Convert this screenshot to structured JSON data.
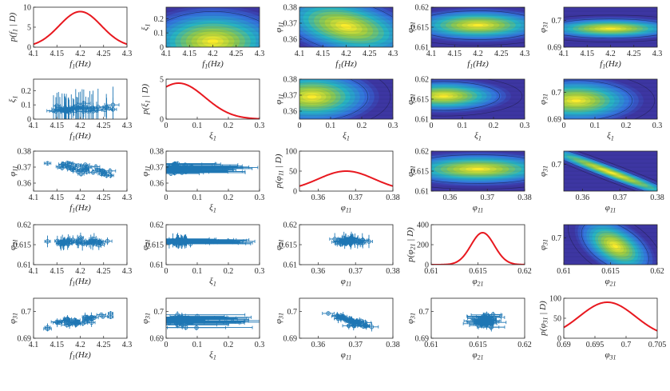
{
  "colors": {
    "curve": "#e8181f",
    "errorbar": "#1f77b4",
    "contour_low": "#3e2e9a",
    "contour_mid": "#2ab0c0",
    "contour_high": "#f8ea2c",
    "axis": "#262626"
  },
  "chart_data": [
    {
      "id": "pdf-f1",
      "type": "line",
      "panel": [
        0,
        0
      ],
      "xlabel": "f_1(Hz)",
      "ylabel": "p(f_1 | D)",
      "xlim": [
        4.1,
        4.3
      ],
      "ylim": [
        0,
        10
      ],
      "xticks": [
        "4.1",
        "4.15",
        "4.2",
        "4.25",
        "4.3"
      ],
      "yticks": [
        "0",
        "5",
        "10"
      ],
      "curve": {
        "kind": "gaussian",
        "mu": 4.2,
        "sigma": 0.045,
        "peak": 8.9
      }
    },
    {
      "id": "contour-xi1-f1",
      "type": "heatmap",
      "panel": [
        0,
        1
      ],
      "xlabel": "f_1(Hz)",
      "ylabel": "ξ_1",
      "xlim": [
        4.1,
        4.3
      ],
      "ylim": [
        0,
        0.28
      ],
      "xticks": [
        "4.1",
        "4.15",
        "4.2",
        "4.25",
        "4.3"
      ],
      "yticks": [
        "0",
        "0.1",
        "0.2"
      ],
      "density": {
        "mx": 4.2,
        "my": 0.04,
        "sx": 0.045,
        "sy": 0.07,
        "rho": 0
      }
    },
    {
      "id": "contour-phi11-f1",
      "type": "heatmap",
      "panel": [
        0,
        2
      ],
      "xlabel": "f_1(Hz)",
      "ylabel": "φ_11",
      "xlim": [
        4.1,
        4.3
      ],
      "ylim": [
        0.355,
        0.38
      ],
      "xticks": [
        "4.1",
        "4.15",
        "4.2",
        "4.25",
        "4.3"
      ],
      "yticks": [
        "0.36",
        "0.37",
        "0.38"
      ],
      "density": {
        "mx": 4.2,
        "my": 0.368,
        "sx": 0.045,
        "sy": 0.006,
        "rho": -0.4
      }
    },
    {
      "id": "contour-phi21-f1",
      "type": "heatmap",
      "panel": [
        0,
        3
      ],
      "xlabel": "f_1(Hz)",
      "ylabel": "φ_21",
      "xlim": [
        4.1,
        4.3
      ],
      "ylim": [
        0.61,
        0.62
      ],
      "xticks": [
        "4.1",
        "4.15",
        "4.2",
        "4.25",
        "4.3"
      ],
      "yticks": [
        "0.61",
        "0.615",
        "0.62"
      ],
      "density": {
        "mx": 4.2,
        "my": 0.6155,
        "sx": 0.045,
        "sy": 0.0012,
        "rho": 0
      }
    },
    {
      "id": "contour-phi31-f1",
      "type": "heatmap",
      "panel": [
        0,
        4
      ],
      "xlabel": "f_1(Hz)",
      "ylabel": "φ_31",
      "xlim": [
        4.1,
        4.3
      ],
      "ylim": [
        0.69,
        0.705
      ],
      "xticks": [
        "4.1",
        "4.15",
        "4.2",
        "4.25",
        "4.3"
      ],
      "yticks": [
        "0.69",
        "0.7"
      ],
      "density": {
        "mx": 4.2,
        "my": 0.697,
        "sx": 0.045,
        "sy": 0.0012,
        "rho": 0
      }
    },
    {
      "id": "scatter-xi1-f1",
      "type": "scatter",
      "panel": [
        1,
        0
      ],
      "xlabel": "f_1(Hz)",
      "ylabel": "ξ_1",
      "xlim": [
        4.1,
        4.3
      ],
      "ylim": [
        0,
        0.28
      ],
      "xticks": [
        "4.1",
        "4.15",
        "4.2",
        "4.25",
        "4.3"
      ],
      "yticks": [
        "0",
        "0.1",
        "0.2"
      ],
      "points": {
        "cx": 4.2,
        "cy": 0.07,
        "sx": 0.035,
        "sy": 0.015,
        "ex": 0.012,
        "ey": 0.09,
        "rho": 0,
        "n": 40,
        "xlo": 4.13,
        "xhi": 4.27,
        "ylo": 0.02,
        "yhi": 0.12,
        "seed": 11
      }
    },
    {
      "id": "pdf-xi1",
      "type": "line",
      "panel": [
        1,
        1
      ],
      "xlabel": "ξ_1",
      "ylabel": "p(ξ_1 | D)",
      "xlim": [
        0,
        0.3
      ],
      "ylim": [
        0,
        5
      ],
      "xticks": [
        "0",
        "0.1",
        "0.2",
        "0.3"
      ],
      "yticks": [
        "0",
        "5"
      ],
      "curve": {
        "kind": "gaussian",
        "mu": 0.04,
        "sigma": 0.085,
        "peak": 4.5
      }
    },
    {
      "id": "contour-phi11-xi1",
      "type": "heatmap",
      "panel": [
        1,
        2
      ],
      "xlabel": "ξ_1",
      "ylabel": "φ_11",
      "xlim": [
        0,
        0.3
      ],
      "ylim": [
        0.355,
        0.38
      ],
      "xticks": [
        "0",
        "0.1",
        "0.2",
        "0.3"
      ],
      "yticks": [
        "0.36",
        "0.37",
        "0.38"
      ],
      "density": {
        "mx": 0.04,
        "my": 0.369,
        "sx": 0.06,
        "sy": 0.005,
        "rho": 0
      }
    },
    {
      "id": "contour-phi21-xi1",
      "type": "heatmap",
      "panel": [
        1,
        3
      ],
      "xlabel": "ξ_1",
      "ylabel": "φ_21",
      "xlim": [
        0,
        0.3
      ],
      "ylim": [
        0.61,
        0.62
      ],
      "xticks": [
        "0",
        "0.1",
        "0.2",
        "0.3"
      ],
      "yticks": [
        "0.61",
        "0.615",
        "0.62"
      ],
      "density": {
        "mx": 0.04,
        "my": 0.6158,
        "sx": 0.06,
        "sy": 0.0012,
        "rho": 0
      }
    },
    {
      "id": "contour-phi31-xi1",
      "type": "heatmap",
      "panel": [
        1,
        4
      ],
      "xlabel": "ξ_1",
      "ylabel": "φ_31",
      "xlim": [
        0,
        0.3
      ],
      "ylim": [
        0.69,
        0.705
      ],
      "xticks": [
        "0",
        "0.1",
        "0.2",
        "0.3"
      ],
      "yticks": [
        "0.69",
        "0.7"
      ],
      "density": {
        "mx": 0.04,
        "my": 0.697,
        "sx": 0.06,
        "sy": 0.0025,
        "rho": 0
      }
    },
    {
      "id": "scatter-phi11-f1",
      "type": "scatter",
      "panel": [
        2,
        0
      ],
      "xlabel": "f_1(Hz)",
      "ylabel": "φ_11",
      "xlim": [
        4.1,
        4.3
      ],
      "ylim": [
        0.355,
        0.38
      ],
      "xticks": [
        "4.1",
        "4.15",
        "4.2",
        "4.25",
        "4.3"
      ],
      "yticks": [
        "0.36",
        "0.37",
        "0.38"
      ],
      "points": {
        "cx": 4.2,
        "cy": 0.369,
        "sx": 0.035,
        "sy": 0.002,
        "ex": 0.008,
        "ey": 0.0012,
        "rho": -0.8,
        "n": 40,
        "xlo": 4.13,
        "xhi": 4.265,
        "ylo": 0.36,
        "yhi": 0.376,
        "seed": 23
      }
    },
    {
      "id": "scatter-phi11-xi1",
      "type": "scatter",
      "panel": [
        2,
        1
      ],
      "xlabel": "ξ_1",
      "ylabel": "φ_11",
      "xlim": [
        0,
        0.3
      ],
      "ylim": [
        0.355,
        0.38
      ],
      "xticks": [
        "0",
        "0.1",
        "0.2",
        "0.3"
      ],
      "yticks": [
        "0.36",
        "0.37",
        "0.38"
      ],
      "points": {
        "cx": 0.05,
        "cy": 0.369,
        "sx": 0.02,
        "sy": 0.0015,
        "ex": 0.16,
        "ey": 0.0012,
        "rho": 0,
        "n": 40,
        "xlo": 0.01,
        "xhi": 0.1,
        "ylo": 0.364,
        "yhi": 0.374,
        "seed": 37
      }
    },
    {
      "id": "pdf-phi11",
      "type": "line",
      "panel": [
        2,
        2
      ],
      "xlabel": "φ_11",
      "ylabel": "p(φ_11 | D)",
      "xlim": [
        0.355,
        0.38
      ],
      "ylim": [
        0,
        100
      ],
      "xticks": [
        "0.36",
        "0.37",
        "0.38"
      ],
      "yticks": [
        "0",
        "50",
        "100"
      ],
      "curve": {
        "kind": "gaussian",
        "mu": 0.3675,
        "sigma": 0.0075,
        "peak": 50
      }
    },
    {
      "id": "contour-phi21-phi11",
      "type": "heatmap",
      "panel": [
        2,
        3
      ],
      "xlabel": "φ_11",
      "ylabel": "φ_21",
      "xlim": [
        0.355,
        0.38
      ],
      "ylim": [
        0.61,
        0.62
      ],
      "xticks": [
        "0.36",
        "0.37",
        "0.38"
      ],
      "yticks": [
        "0.61",
        "0.615",
        "0.62"
      ],
      "density": {
        "mx": 0.3675,
        "my": 0.6155,
        "sx": 0.0065,
        "sy": 0.0012,
        "rho": 0
      }
    },
    {
      "id": "contour-phi31-phi11",
      "type": "heatmap",
      "panel": [
        2,
        4
      ],
      "xlabel": "φ_11",
      "ylabel": "φ_31",
      "xlim": [
        0.355,
        0.38
      ],
      "ylim": [
        0.69,
        0.705
      ],
      "xticks": [
        "0.36",
        "0.37",
        "0.38"
      ],
      "yticks": [
        "0.7"
      ],
      "density": {
        "mx": 0.3675,
        "my": 0.697,
        "sx": 0.0065,
        "sy": 0.0035,
        "rho": -0.97
      }
    },
    {
      "id": "scatter-phi21-f1",
      "type": "scatter",
      "panel": [
        3,
        0
      ],
      "xlabel": "f_1(Hz)",
      "ylabel": "φ_21",
      "xlim": [
        4.1,
        4.3
      ],
      "ylim": [
        0.61,
        0.62
      ],
      "xticks": [
        "4.1",
        "4.15",
        "4.2",
        "4.25",
        "4.3"
      ],
      "yticks": [
        "0.61",
        "0.615",
        "0.62"
      ],
      "points": {
        "cx": 4.2,
        "cy": 0.6158,
        "sx": 0.035,
        "sy": 0.0004,
        "ex": 0.008,
        "ey": 0.0012,
        "rho": 0,
        "n": 40,
        "xlo": 4.13,
        "xhi": 4.265,
        "ylo": 0.6145,
        "yhi": 0.617,
        "seed": 41
      }
    },
    {
      "id": "scatter-phi21-xi1",
      "type": "scatter",
      "panel": [
        3,
        1
      ],
      "xlabel": "ξ_1",
      "ylabel": "φ_21",
      "xlim": [
        0,
        0.3
      ],
      "ylim": [
        0.61,
        0.62
      ],
      "xticks": [
        "0",
        "0.1",
        "0.2",
        "0.3"
      ],
      "yticks": [
        "0.61",
        "0.615",
        "0.62"
      ],
      "points": {
        "cx": 0.05,
        "cy": 0.6158,
        "sx": 0.02,
        "sy": 0.0004,
        "ex": 0.16,
        "ey": 0.0012,
        "rho": 0,
        "n": 40,
        "xlo": 0.01,
        "xhi": 0.1,
        "ylo": 0.6145,
        "yhi": 0.617,
        "seed": 53
      }
    },
    {
      "id": "scatter-phi21-phi11",
      "type": "scatter",
      "panel": [
        3,
        2
      ],
      "xlabel": "φ_11",
      "ylabel": "φ_21",
      "xlim": [
        0.355,
        0.38
      ],
      "ylim": [
        0.61,
        0.62
      ],
      "xticks": [
        "0.36",
        "0.37",
        "0.38"
      ],
      "yticks": [
        "0.61",
        "0.615",
        "0.62"
      ],
      "points": {
        "cx": 0.3685,
        "cy": 0.6158,
        "sx": 0.002,
        "sy": 0.0004,
        "ex": 0.0012,
        "ey": 0.0012,
        "rho": 0,
        "n": 40,
        "xlo": 0.362,
        "xhi": 0.374,
        "ylo": 0.6145,
        "yhi": 0.617,
        "seed": 67
      }
    },
    {
      "id": "pdf-phi21",
      "type": "line",
      "panel": [
        3,
        3
      ],
      "xlabel": "φ_21",
      "ylabel": "p(φ_21 | D)",
      "xlim": [
        0.61,
        0.62
      ],
      "ylim": [
        0,
        400
      ],
      "xticks": [
        "0.61",
        "0.615",
        "0.62"
      ],
      "yticks": [
        "0",
        "200",
        "400"
      ],
      "curve": {
        "kind": "gaussian",
        "mu": 0.6155,
        "sigma": 0.00125,
        "peak": 320
      }
    },
    {
      "id": "contour-phi31-phi21",
      "type": "heatmap",
      "panel": [
        3,
        4
      ],
      "xlabel": "φ_21",
      "ylabel": "φ_31",
      "xlim": [
        0.61,
        0.62
      ],
      "ylim": [
        0.69,
        0.705
      ],
      "xticks": [
        "0.61",
        "0.615",
        "0.62"
      ],
      "yticks": [
        "0.7"
      ],
      "density": {
        "mx": 0.6155,
        "my": 0.697,
        "sx": 0.0012,
        "sy": 0.0032,
        "rho": -0.5
      }
    },
    {
      "id": "scatter-phi31-f1",
      "type": "scatter",
      "panel": [
        4,
        0
      ],
      "xlabel": "f_1(Hz)",
      "ylabel": "φ_31",
      "xlim": [
        4.1,
        4.3
      ],
      "ylim": [
        0.69,
        0.705
      ],
      "xticks": [
        "4.1",
        "4.15",
        "4.2",
        "4.25",
        "4.3"
      ],
      "yticks": [
        "0.69",
        "0.7"
      ],
      "points": {
        "cx": 4.2,
        "cy": 0.6965,
        "sx": 0.035,
        "sy": 0.0012,
        "ex": 0.008,
        "ey": 0.0012,
        "rho": 0.75,
        "n": 40,
        "xlo": 4.13,
        "xhi": 4.265,
        "ylo": 0.6935,
        "yhi": 0.6995,
        "seed": 71
      }
    },
    {
      "id": "scatter-phi31-xi1",
      "type": "scatter",
      "panel": [
        4,
        1
      ],
      "xlabel": "ξ_1",
      "ylabel": "φ_31",
      "xlim": [
        0,
        0.3
      ],
      "ylim": [
        0.69,
        0.705
      ],
      "xticks": [
        "0",
        "0.1",
        "0.2",
        "0.3"
      ],
      "yticks": [
        "0.69",
        "0.7"
      ],
      "points": {
        "cx": 0.05,
        "cy": 0.6965,
        "sx": 0.02,
        "sy": 0.0012,
        "ex": 0.16,
        "ey": 0.0012,
        "rho": 0,
        "n": 40,
        "xlo": 0.01,
        "xhi": 0.1,
        "ylo": 0.6935,
        "yhi": 0.7005,
        "seed": 83
      }
    },
    {
      "id": "scatter-phi31-phi11",
      "type": "scatter",
      "panel": [
        4,
        2
      ],
      "xlabel": "φ_11",
      "ylabel": "φ_31",
      "xlim": [
        0.355,
        0.38
      ],
      "ylim": [
        0.69,
        0.705
      ],
      "xticks": [
        "0.36",
        "0.37",
        "0.38"
      ],
      "yticks": [
        "0.69",
        "0.7"
      ],
      "points": {
        "cx": 0.3685,
        "cy": 0.6965,
        "sx": 0.003,
        "sy": 0.0015,
        "ex": 0.0012,
        "ey": 0.0012,
        "rho": -0.9,
        "n": 40,
        "xlo": 0.359,
        "xhi": 0.376,
        "ylo": 0.6925,
        "yhi": 0.701,
        "seed": 97
      }
    },
    {
      "id": "scatter-phi31-phi21",
      "type": "scatter",
      "panel": [
        4,
        3
      ],
      "xlabel": "φ_21",
      "ylabel": "φ_31",
      "xlim": [
        0.61,
        0.62
      ],
      "ylim": [
        0.69,
        0.705
      ],
      "xticks": [
        "0.61",
        "0.615",
        "0.62"
      ],
      "yticks": [
        "0.69",
        "0.7"
      ],
      "points": {
        "cx": 0.6158,
        "cy": 0.6965,
        "sx": 0.0004,
        "sy": 0.0012,
        "ex": 0.0012,
        "ey": 0.0012,
        "rho": 0,
        "n": 40,
        "xlo": 0.6145,
        "xhi": 0.617,
        "ylo": 0.6935,
        "yhi": 0.7005,
        "seed": 101
      }
    },
    {
      "id": "pdf-phi31",
      "type": "line",
      "panel": [
        4,
        4
      ],
      "xlabel": "φ_31",
      "ylabel": "p(φ_31 | D)",
      "xlim": [
        0.69,
        0.705
      ],
      "ylim": [
        0,
        100
      ],
      "xticks": [
        "0.69",
        "0.695",
        "0.7",
        "0.705"
      ],
      "yticks": [
        "0",
        "50",
        "100"
      ],
      "curve": {
        "kind": "gaussian",
        "mu": 0.697,
        "sigma": 0.0045,
        "peak": 90
      }
    }
  ]
}
